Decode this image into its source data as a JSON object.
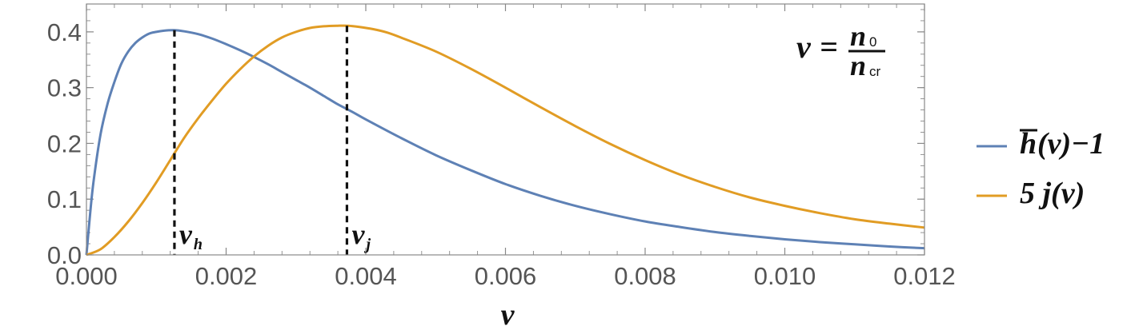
{
  "chart_data": {
    "type": "line",
    "title": "",
    "xlabel": "ν",
    "ylabel": "",
    "xlim": [
      0,
      0.012
    ],
    "ylim": [
      0,
      0.45
    ],
    "x_ticks": [
      "0.000",
      "0.002",
      "0.004",
      "0.006",
      "0.008",
      "0.010",
      "0.012"
    ],
    "x_tick_values": [
      0,
      0.002,
      0.004,
      0.006,
      0.008,
      0.01,
      0.012
    ],
    "y_ticks": [
      "0.0",
      "0.1",
      "0.2",
      "0.3",
      "0.4"
    ],
    "y_tick_values": [
      0,
      0.1,
      0.2,
      0.3,
      0.4
    ],
    "grid": false,
    "legend_position": "right",
    "colors": {
      "h": "#5e81b5",
      "j": "#e19c24"
    },
    "series": [
      {
        "name": "h̄(ν)−1",
        "key": "h",
        "x": [
          0,
          5e-05,
          0.0001,
          0.0002,
          0.0003,
          0.0004,
          0.0005,
          0.0006,
          0.0007,
          0.0008,
          0.0009,
          0.001,
          0.0011,
          0.00125,
          0.0014,
          0.0016,
          0.0018,
          0.002,
          0.0022,
          0.0024,
          0.0026,
          0.0028,
          0.003,
          0.0032,
          0.0034,
          0.0036,
          0.0038,
          0.004,
          0.0045,
          0.005,
          0.0055,
          0.006,
          0.0065,
          0.007,
          0.0075,
          0.008,
          0.0085,
          0.009,
          0.0095,
          0.01,
          0.0105,
          0.011,
          0.0115,
          0.012
        ],
        "y": [
          0,
          0.07,
          0.13,
          0.215,
          0.27,
          0.31,
          0.343,
          0.365,
          0.38,
          0.39,
          0.397,
          0.4,
          0.402,
          0.403,
          0.401,
          0.396,
          0.388,
          0.378,
          0.367,
          0.355,
          0.342,
          0.328,
          0.314,
          0.3,
          0.285,
          0.27,
          0.257,
          0.243,
          0.21,
          0.179,
          0.152,
          0.127,
          0.106,
          0.088,
          0.073,
          0.06,
          0.05,
          0.041,
          0.034,
          0.028,
          0.023,
          0.019,
          0.015,
          0.012
        ]
      },
      {
        "name": "5 j(ν)",
        "key": "j",
        "x": [
          0,
          0.0002,
          0.0004,
          0.0006,
          0.0008,
          0.001,
          0.0012,
          0.0014,
          0.0016,
          0.0018,
          0.002,
          0.0022,
          0.0024,
          0.0026,
          0.0028,
          0.003,
          0.0032,
          0.0034,
          0.0036,
          0.00375,
          0.0039,
          0.0041,
          0.0043,
          0.0045,
          0.005,
          0.0055,
          0.006,
          0.0065,
          0.007,
          0.0075,
          0.008,
          0.0085,
          0.009,
          0.0095,
          0.01,
          0.0105,
          0.011,
          0.0115,
          0.012
        ],
        "y": [
          0,
          0.01,
          0.032,
          0.06,
          0.093,
          0.13,
          0.17,
          0.21,
          0.245,
          0.277,
          0.307,
          0.333,
          0.356,
          0.375,
          0.39,
          0.4,
          0.407,
          0.41,
          0.411,
          0.411,
          0.409,
          0.405,
          0.399,
          0.39,
          0.365,
          0.334,
          0.3,
          0.265,
          0.231,
          0.199,
          0.17,
          0.144,
          0.122,
          0.103,
          0.088,
          0.075,
          0.064,
          0.056,
          0.049
        ]
      }
    ],
    "markers": [
      {
        "label_main": "ν",
        "label_sub": "h",
        "x": 0.00126,
        "y": 0.403,
        "series": "h"
      },
      {
        "label_main": "ν",
        "label_sub": "j",
        "x": 0.00373,
        "y": 0.411,
        "series": "j"
      }
    ],
    "annotations": {
      "formula_lhs": "ν",
      "formula_eq": "=",
      "formula_num_main": "n",
      "formula_num_sub": "0",
      "formula_den_main": "n",
      "formula_den_sub": "cr"
    },
    "legend": [
      {
        "main": "h",
        "rest": "(ν)−1",
        "overline": true,
        "key": "h"
      },
      {
        "main": "5 j(ν)",
        "rest": "",
        "overline": false,
        "key": "j"
      }
    ]
  }
}
